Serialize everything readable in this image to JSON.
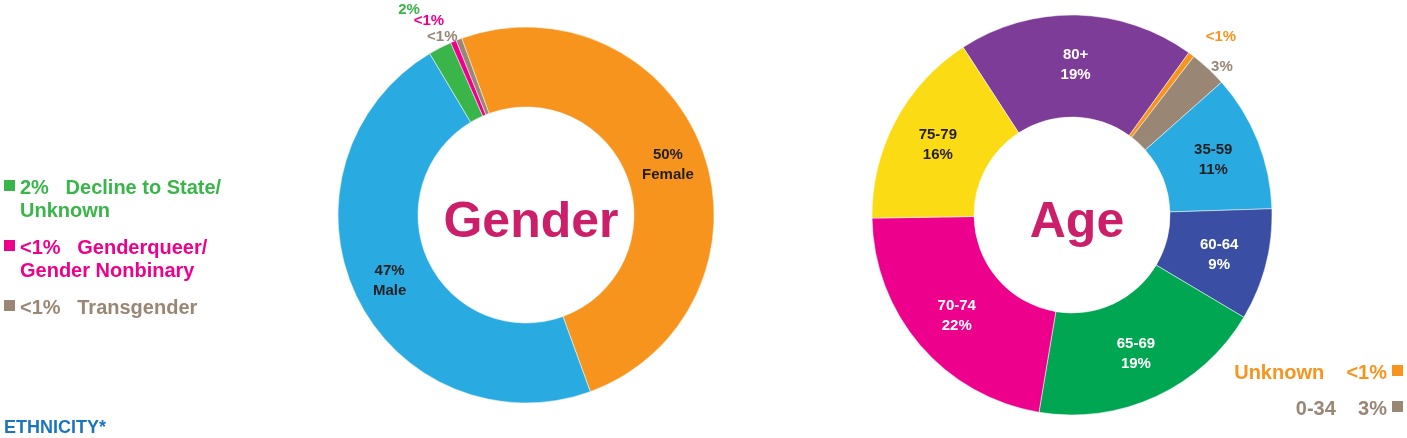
{
  "chart_data": [
    {
      "type": "donut",
      "title": "Gender",
      "categories": [
        "Female",
        "Male",
        "Decline to State/ Unknown",
        "Genderqueer/ Gender Nonbinary",
        "Transgender"
      ],
      "values": [
        50,
        47,
        2,
        0.5,
        0.5
      ],
      "value_labels": [
        "50%",
        "47%",
        "2%",
        "<1%",
        "<1%"
      ],
      "colors": [
        "#f7941d",
        "#29abe2",
        "#39b54a",
        "#ec008c",
        "#998675"
      ],
      "legend": "left",
      "annotations": [
        "ETHNICITY*"
      ]
    },
    {
      "type": "donut",
      "title": "Age",
      "categories": [
        "80+",
        "Unknown",
        "0-34",
        "35-59",
        "60-64",
        "65-69",
        "70-74",
        "75-79"
      ],
      "values": [
        19,
        0.5,
        3,
        11,
        9,
        19,
        22,
        16
      ],
      "value_labels": [
        "19%",
        "<1%",
        "3%",
        "11%",
        "9%",
        "19%",
        "22%",
        "16%"
      ],
      "colors": [
        "#7d3c98",
        "#f7941d",
        "#998675",
        "#29abe2",
        "#3a4fa3",
        "#00a651",
        "#ec008c",
        "#fbdb14"
      ],
      "legend": "bottom right"
    }
  ]
}
